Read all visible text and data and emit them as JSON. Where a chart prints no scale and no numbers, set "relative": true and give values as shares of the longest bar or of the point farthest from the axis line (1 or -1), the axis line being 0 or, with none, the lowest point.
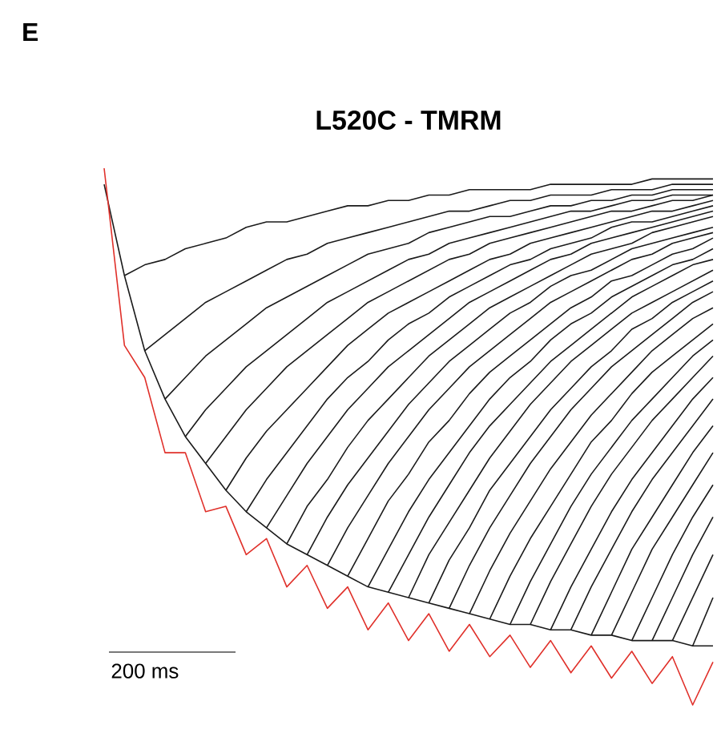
{
  "chart_data": {
    "type": "line",
    "title": "L520C - TMRM",
    "annotations": [
      "E",
      "200 ms"
    ],
    "relative": true,
    "categories": [
      null,
      null,
      null,
      null,
      null,
      null,
      null,
      null,
      null,
      null,
      null,
      null,
      null,
      null,
      null,
      null,
      null,
      null,
      null,
      null,
      null,
      null,
      null,
      null,
      null,
      null,
      null,
      null,
      null,
      null,
      null
    ],
    "series": [
      {
        "color": "#1a1a1a",
        "values": [
          null,
          0.8,
          0.82,
          0.83,
          0.85,
          0.86,
          0.87,
          0.89,
          0.9,
          0.9,
          0.91,
          0.92,
          0.93,
          0.93,
          0.94,
          0.94,
          0.95,
          0.95,
          0.96,
          0.96,
          0.96,
          0.96,
          0.97,
          0.97,
          0.97,
          0.97,
          0.97,
          0.98,
          0.98,
          0.98,
          0.98
        ]
      },
      {
        "color": "#1a1a1a",
        "values": [
          null,
          null,
          0.66,
          0.69,
          0.72,
          0.75,
          0.77,
          0.79,
          0.81,
          0.83,
          0.84,
          0.86,
          0.87,
          0.88,
          0.89,
          0.9,
          0.91,
          0.92,
          0.92,
          0.93,
          0.94,
          0.94,
          0.95,
          0.95,
          0.95,
          0.96,
          0.96,
          0.96,
          0.97,
          0.97,
          0.97
        ]
      },
      {
        "color": "#1a1a1a",
        "values": [
          null,
          null,
          null,
          0.57,
          0.61,
          0.65,
          0.68,
          0.71,
          0.74,
          0.76,
          0.78,
          0.8,
          0.82,
          0.84,
          0.85,
          0.86,
          0.88,
          0.89,
          0.9,
          0.91,
          0.91,
          0.92,
          0.93,
          0.93,
          0.94,
          0.94,
          0.95,
          0.95,
          0.96,
          0.96,
          0.96
        ]
      },
      {
        "color": "#1a1a1a",
        "values": [
          null,
          null,
          null,
          null,
          0.5,
          0.55,
          0.59,
          0.63,
          0.66,
          0.69,
          0.72,
          0.75,
          0.77,
          0.79,
          0.81,
          0.83,
          0.84,
          0.86,
          0.87,
          0.88,
          0.89,
          0.9,
          0.91,
          0.92,
          0.92,
          0.93,
          0.94,
          0.94,
          0.95,
          0.95,
          0.95
        ]
      },
      {
        "color": "#1a1a1a",
        "values": [
          null,
          null,
          null,
          null,
          null,
          0.45,
          0.5,
          0.55,
          0.59,
          0.63,
          0.66,
          0.69,
          0.72,
          0.75,
          0.77,
          0.79,
          0.81,
          0.83,
          0.84,
          0.86,
          0.87,
          0.88,
          0.89,
          0.9,
          0.91,
          0.92,
          0.92,
          0.93,
          0.94,
          0.94,
          0.95
        ]
      },
      {
        "color": "#1a1a1a",
        "values": [
          null,
          null,
          null,
          null,
          null,
          null,
          0.4,
          0.46,
          0.51,
          0.55,
          0.59,
          0.63,
          0.67,
          0.7,
          0.73,
          0.75,
          0.77,
          0.79,
          0.81,
          0.83,
          0.84,
          0.86,
          0.87,
          0.88,
          0.89,
          0.9,
          0.91,
          0.92,
          0.92,
          0.93,
          0.94
        ]
      },
      {
        "color": "#1a1a1a",
        "values": [
          null,
          null,
          null,
          null,
          null,
          null,
          null,
          0.36,
          0.42,
          0.47,
          0.52,
          0.57,
          0.61,
          0.64,
          0.68,
          0.71,
          0.73,
          0.76,
          0.78,
          0.8,
          0.82,
          0.83,
          0.85,
          0.86,
          0.87,
          0.89,
          0.9,
          0.9,
          0.91,
          0.92,
          0.93
        ]
      },
      {
        "color": "#1a1a1a",
        "values": [
          null,
          null,
          null,
          null,
          null,
          null,
          null,
          null,
          0.33,
          0.39,
          0.45,
          0.5,
          0.55,
          0.59,
          0.63,
          0.66,
          0.69,
          0.72,
          0.75,
          0.77,
          0.79,
          0.81,
          0.83,
          0.84,
          0.86,
          0.87,
          0.88,
          0.89,
          0.9,
          0.91,
          0.92
        ]
      },
      {
        "color": "#1a1a1a",
        "values": [
          null,
          null,
          null,
          null,
          null,
          null,
          null,
          null,
          null,
          0.3,
          0.37,
          0.42,
          0.48,
          0.53,
          0.57,
          0.61,
          0.65,
          0.68,
          0.71,
          0.74,
          0.76,
          0.78,
          0.8,
          0.82,
          0.84,
          0.85,
          0.86,
          0.88,
          0.89,
          0.9,
          0.91
        ]
      },
      {
        "color": "#1a1a1a",
        "values": [
          null,
          null,
          null,
          null,
          null,
          null,
          null,
          null,
          null,
          null,
          0.28,
          0.35,
          0.41,
          0.46,
          0.51,
          0.56,
          0.6,
          0.64,
          0.67,
          0.7,
          0.73,
          0.75,
          0.78,
          0.8,
          0.81,
          0.83,
          0.85,
          0.86,
          0.87,
          0.88,
          0.89
        ]
      },
      {
        "color": "#1a1a1a",
        "values": [
          null,
          null,
          null,
          null,
          null,
          null,
          null,
          null,
          null,
          null,
          null,
          0.26,
          0.33,
          0.39,
          0.45,
          0.5,
          0.55,
          0.59,
          0.63,
          0.66,
          0.69,
          0.72,
          0.75,
          0.77,
          0.79,
          0.81,
          0.83,
          0.84,
          0.86,
          0.87,
          0.88
        ]
      },
      {
        "color": "#1a1a1a",
        "values": [
          null,
          null,
          null,
          null,
          null,
          null,
          null,
          null,
          null,
          null,
          null,
          null,
          0.24,
          0.31,
          0.38,
          0.43,
          0.49,
          0.53,
          0.58,
          0.62,
          0.65,
          0.68,
          0.71,
          0.74,
          0.76,
          0.79,
          0.8,
          0.82,
          0.84,
          0.85,
          0.87
        ]
      },
      {
        "color": "#1a1a1a",
        "values": [
          null,
          null,
          null,
          null,
          null,
          null,
          null,
          null,
          null,
          null,
          null,
          null,
          null,
          0.22,
          0.29,
          0.36,
          0.42,
          0.47,
          0.52,
          0.57,
          0.61,
          0.64,
          0.68,
          0.71,
          0.73,
          0.76,
          0.78,
          0.8,
          0.82,
          0.83,
          0.85
        ]
      },
      {
        "color": "#1a1a1a",
        "values": [
          null,
          null,
          null,
          null,
          null,
          null,
          null,
          null,
          null,
          null,
          null,
          null,
          null,
          null,
          0.21,
          0.28,
          0.35,
          0.41,
          0.47,
          0.52,
          0.56,
          0.6,
          0.64,
          0.67,
          0.7,
          0.73,
          0.76,
          0.78,
          0.8,
          0.82,
          0.83
        ]
      },
      {
        "color": "#1a1a1a",
        "values": [
          null,
          null,
          null,
          null,
          null,
          null,
          null,
          null,
          null,
          null,
          null,
          null,
          null,
          null,
          null,
          0.2,
          0.28,
          0.34,
          0.4,
          0.46,
          0.51,
          0.56,
          0.6,
          0.64,
          0.67,
          0.7,
          0.73,
          0.75,
          0.77,
          0.79,
          0.81
        ]
      },
      {
        "color": "#1a1a1a",
        "values": [
          null,
          null,
          null,
          null,
          null,
          null,
          null,
          null,
          null,
          null,
          null,
          null,
          null,
          null,
          null,
          null,
          0.19,
          0.27,
          0.33,
          0.4,
          0.45,
          0.5,
          0.55,
          0.59,
          0.63,
          0.66,
          0.7,
          0.72,
          0.75,
          0.77,
          0.79
        ]
      },
      {
        "color": "#1a1a1a",
        "values": [
          null,
          null,
          null,
          null,
          null,
          null,
          null,
          null,
          null,
          null,
          null,
          null,
          null,
          null,
          null,
          null,
          null,
          0.18,
          0.26,
          0.33,
          0.39,
          0.45,
          0.5,
          0.55,
          0.59,
          0.63,
          0.66,
          0.69,
          0.72,
          0.75,
          0.77
        ]
      },
      {
        "color": "#1a1a1a",
        "values": [
          null,
          null,
          null,
          null,
          null,
          null,
          null,
          null,
          null,
          null,
          null,
          null,
          null,
          null,
          null,
          null,
          null,
          null,
          0.17,
          0.25,
          0.32,
          0.38,
          0.44,
          0.49,
          0.54,
          0.58,
          0.62,
          0.66,
          0.69,
          0.72,
          0.74
        ]
      },
      {
        "color": "#1a1a1a",
        "values": [
          null,
          null,
          null,
          null,
          null,
          null,
          null,
          null,
          null,
          null,
          null,
          null,
          null,
          null,
          null,
          null,
          null,
          null,
          null,
          0.16,
          0.24,
          0.31,
          0.37,
          0.43,
          0.49,
          0.53,
          0.58,
          0.62,
          0.65,
          0.68,
          0.71
        ]
      },
      {
        "color": "#1a1a1a",
        "values": [
          null,
          null,
          null,
          null,
          null,
          null,
          null,
          null,
          null,
          null,
          null,
          null,
          null,
          null,
          null,
          null,
          null,
          null,
          null,
          null,
          0.15,
          0.23,
          0.3,
          0.37,
          0.43,
          0.48,
          0.53,
          0.57,
          0.61,
          0.65,
          0.68
        ]
      },
      {
        "color": "#1a1a1a",
        "values": [
          null,
          null,
          null,
          null,
          null,
          null,
          null,
          null,
          null,
          null,
          null,
          null,
          null,
          null,
          null,
          null,
          null,
          null,
          null,
          null,
          null,
          0.15,
          0.23,
          0.3,
          0.37,
          0.43,
          0.48,
          0.53,
          0.57,
          0.61,
          0.65
        ]
      },
      {
        "color": "#1a1a1a",
        "values": [
          null,
          null,
          null,
          null,
          null,
          null,
          null,
          null,
          null,
          null,
          null,
          null,
          null,
          null,
          null,
          null,
          null,
          null,
          null,
          null,
          null,
          null,
          0.14,
          0.22,
          0.29,
          0.36,
          0.42,
          0.47,
          0.52,
          0.57,
          0.61
        ]
      },
      {
        "color": "#1a1a1a",
        "values": [
          null,
          null,
          null,
          null,
          null,
          null,
          null,
          null,
          null,
          null,
          null,
          null,
          null,
          null,
          null,
          null,
          null,
          null,
          null,
          null,
          null,
          null,
          null,
          0.14,
          0.22,
          0.29,
          0.36,
          0.42,
          0.47,
          0.52,
          0.57
        ]
      },
      {
        "color": "#1a1a1a",
        "values": [
          null,
          null,
          null,
          null,
          null,
          null,
          null,
          null,
          null,
          null,
          null,
          null,
          null,
          null,
          null,
          null,
          null,
          null,
          null,
          null,
          null,
          null,
          null,
          null,
          0.13,
          0.21,
          0.29,
          0.35,
          0.41,
          0.47,
          0.52
        ]
      },
      {
        "color": "#1a1a1a",
        "values": [
          null,
          null,
          null,
          null,
          null,
          null,
          null,
          null,
          null,
          null,
          null,
          null,
          null,
          null,
          null,
          null,
          null,
          null,
          null,
          null,
          null,
          null,
          null,
          null,
          null,
          0.13,
          0.21,
          0.29,
          0.35,
          0.41,
          0.47
        ]
      },
      {
        "color": "#1a1a1a",
        "values": [
          null,
          null,
          null,
          null,
          null,
          null,
          null,
          null,
          null,
          null,
          null,
          null,
          null,
          null,
          null,
          null,
          null,
          null,
          null,
          null,
          null,
          null,
          null,
          null,
          null,
          null,
          0.12,
          0.2,
          0.28,
          0.35,
          0.41
        ]
      },
      {
        "color": "#1a1a1a",
        "values": [
          null,
          null,
          null,
          null,
          null,
          null,
          null,
          null,
          null,
          null,
          null,
          null,
          null,
          null,
          null,
          null,
          null,
          null,
          null,
          null,
          null,
          null,
          null,
          null,
          null,
          null,
          null,
          0.12,
          0.2,
          0.28,
          0.35
        ]
      },
      {
        "color": "#1a1a1a",
        "values": [
          null,
          null,
          null,
          null,
          null,
          null,
          null,
          null,
          null,
          null,
          null,
          null,
          null,
          null,
          null,
          null,
          null,
          null,
          null,
          null,
          null,
          null,
          null,
          null,
          null,
          null,
          null,
          null,
          0.12,
          0.2,
          0.28
        ]
      },
      {
        "color": "#1a1a1a",
        "values": [
          null,
          null,
          null,
          null,
          null,
          null,
          null,
          null,
          null,
          null,
          null,
          null,
          null,
          null,
          null,
          null,
          null,
          null,
          null,
          null,
          null,
          null,
          null,
          null,
          null,
          null,
          null,
          null,
          null,
          0.11,
          0.2
        ]
      },
      {
        "color": "#1a1a1a",
        "values": [
          0.97,
          0.8,
          0.66,
          0.57,
          0.5,
          0.45,
          0.4,
          0.36,
          0.33,
          0.3,
          0.28,
          0.26,
          0.24,
          0.22,
          0.21,
          0.2,
          0.19,
          0.18,
          0.17,
          0.16,
          0.15,
          0.15,
          0.14,
          0.14,
          0.13,
          0.13,
          0.12,
          0.12,
          0.12,
          0.11,
          0.11
        ]
      },
      {
        "color": "#e0302a",
        "values": [
          1.0,
          0.67,
          0.61,
          0.47,
          0.47,
          0.36,
          0.37,
          0.28,
          0.31,
          0.22,
          0.26,
          0.18,
          0.22,
          0.14,
          0.19,
          0.12,
          0.17,
          0.1,
          0.15,
          0.09,
          0.13,
          0.07,
          0.12,
          0.06,
          0.11,
          0.05,
          0.1,
          0.04,
          0.09,
          0.0,
          0.08
        ]
      }
    ]
  }
}
